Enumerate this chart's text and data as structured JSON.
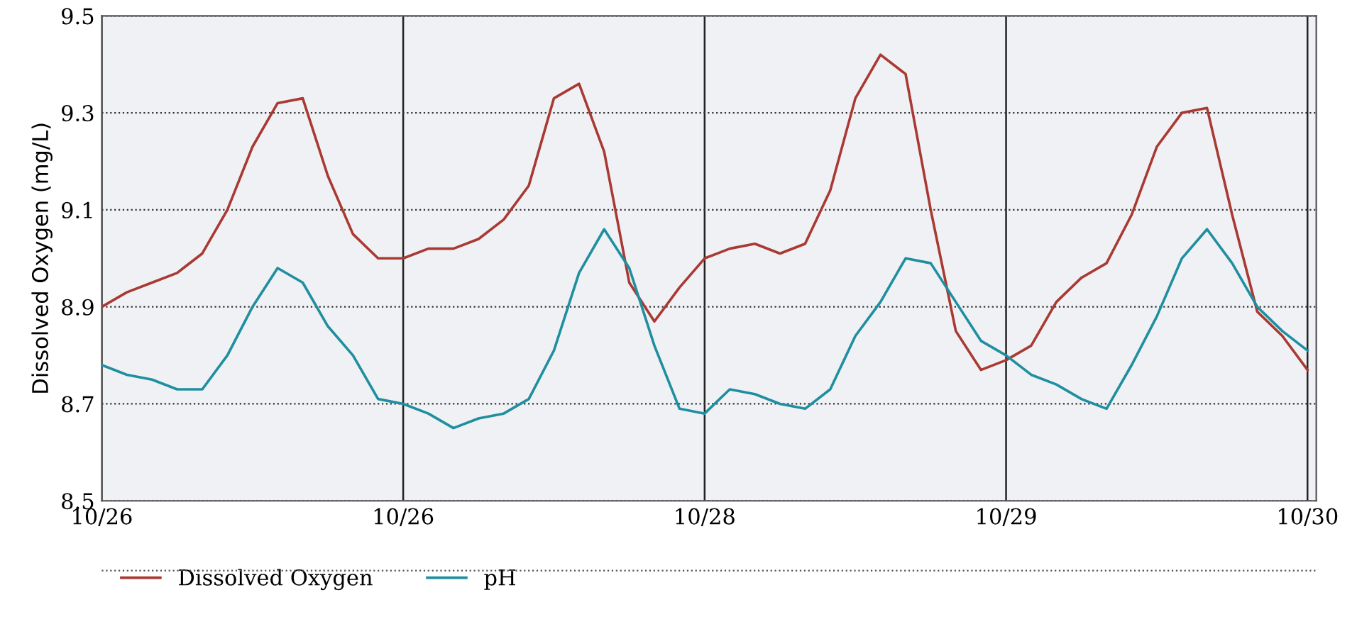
{
  "chart_data": {
    "type": "line",
    "ylabel": "Dissolved Oxygen (mg/L)",
    "categories": [
      "10/26",
      null,
      null,
      null,
      null,
      null,
      null,
      null,
      null,
      null,
      null,
      null,
      "10/26",
      null,
      null,
      null,
      null,
      null,
      null,
      null,
      null,
      null,
      null,
      null,
      "10/28",
      null,
      null,
      null,
      null,
      null,
      null,
      null,
      null,
      null,
      null,
      null,
      "10/29",
      null,
      null,
      null,
      null,
      null,
      null,
      null,
      null,
      null,
      null,
      null,
      "10/30"
    ],
    "series": [
      {
        "name": "Dissolved Oxygen",
        "color": "#a93a33",
        "values": [
          8.9,
          8.93,
          8.95,
          8.97,
          9.01,
          9.1,
          9.23,
          9.32,
          9.33,
          9.17,
          9.05,
          9.0,
          9.0,
          9.02,
          9.02,
          9.04,
          9.08,
          9.15,
          9.33,
          9.36,
          9.22,
          8.95,
          8.87,
          8.94,
          9.0,
          9.02,
          9.03,
          9.01,
          9.03,
          9.14,
          9.33,
          9.42,
          9.38,
          9.1,
          8.85,
          8.77,
          8.79,
          8.82,
          8.91,
          8.96,
          8.99,
          9.09,
          9.23,
          9.3,
          9.31,
          9.09,
          8.89,
          8.84,
          8.77
        ]
      },
      {
        "name": "pH",
        "color": "#1f8fa0",
        "values": [
          8.78,
          8.76,
          8.75,
          8.73,
          8.73,
          8.8,
          8.9,
          8.98,
          8.95,
          8.86,
          8.8,
          8.71,
          8.7,
          8.68,
          8.65,
          8.67,
          8.68,
          8.71,
          8.81,
          8.97,
          9.06,
          8.98,
          8.82,
          8.69,
          8.68,
          8.73,
          8.72,
          8.7,
          8.69,
          8.73,
          8.84,
          8.91,
          9.0,
          8.99,
          8.91,
          8.83,
          8.8,
          8.76,
          8.74,
          8.71,
          8.69,
          8.78,
          8.88,
          9.0,
          9.06,
          8.99,
          8.9,
          8.85,
          8.81
        ]
      }
    ],
    "ylim": [
      8.5,
      9.5
    ],
    "yticks": [
      8.5,
      8.7,
      8.9,
      9.1,
      9.3,
      9.5
    ],
    "grid": true,
    "legend": "bottom",
    "line_style": "solid",
    "marker": "none"
  }
}
